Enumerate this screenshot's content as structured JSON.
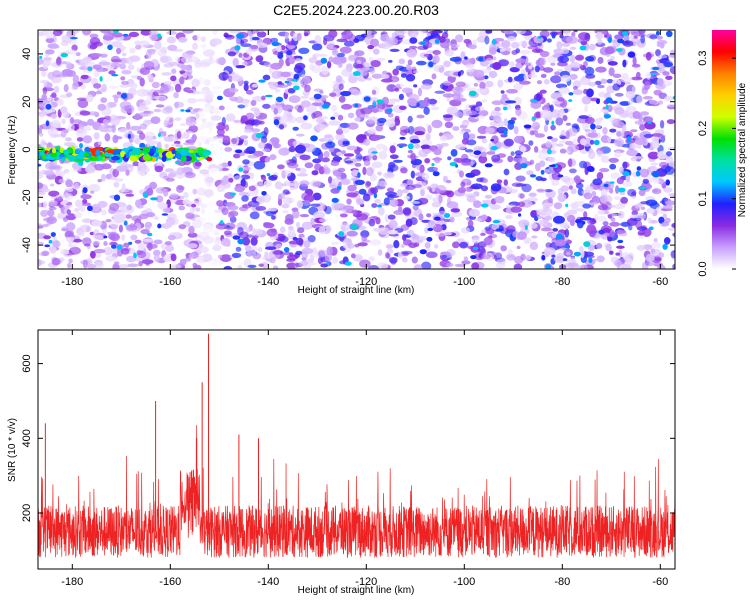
{
  "chart_data": [
    {
      "type": "heatmap",
      "title": "C2E5.2024.223.00.20.R03",
      "xlabel": "Height of straight line (km)",
      "ylabel": "Frequency (Hz)",
      "xlim": [
        -187,
        -57
      ],
      "ylim": [
        -50,
        50
      ],
      "x_ticks": [
        "-180",
        "-160",
        "-140",
        "-120",
        "-100",
        "-80",
        "-60"
      ],
      "y_ticks": [
        "-40",
        "-20",
        "0",
        "20",
        "40"
      ],
      "colorbar": {
        "label": "Normalized spectral amplitude",
        "range": [
          0,
          0.34
        ],
        "ticks": [
          "0.0",
          "0.1",
          "0.2",
          "0.3"
        ],
        "colormap": [
          "#ffffff",
          "#c8a0ff",
          "#8a2be2",
          "#2020ff",
          "#00c8ff",
          "#00e0a0",
          "#00e000",
          "#d0ff00",
          "#ffd000",
          "#ff8000",
          "#ff0000",
          "#ff00a0"
        ]
      },
      "features": [
        {
          "x_range": [
            -187,
            -152
          ],
          "freq": -2,
          "amplitude_peak": 0.33
        },
        {
          "x_range": [
            -153,
            -151
          ],
          "freq_range": [
            -50,
            50
          ],
          "amplitude": 0.02
        }
      ]
    },
    {
      "type": "line",
      "xlabel": "Height of straight line (km)",
      "ylabel": "SNR (10 * v/v)",
      "xlim": [
        -187,
        -57
      ],
      "ylim": [
        50,
        690
      ],
      "x_ticks": [
        "-180",
        "-160",
        "-140",
        "-120",
        "-100",
        "-80",
        "-60"
      ],
      "y_ticks": [
        "200",
        "400",
        "600"
      ],
      "line_color": "#ee2222",
      "peaks": [
        {
          "x": -152.2,
          "y": 680
        },
        {
          "x": -153.5,
          "y": 550
        },
        {
          "x": -163,
          "y": 500
        },
        {
          "x": -185.5,
          "y": 440
        },
        {
          "x": -146,
          "y": 410
        },
        {
          "x": -142,
          "y": 400
        }
      ]
    }
  ]
}
